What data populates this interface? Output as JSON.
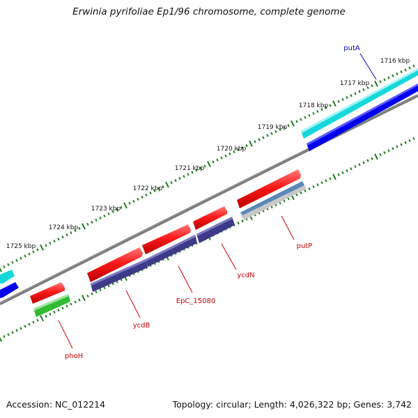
{
  "title": "Erwinia pyrifoliae Ep1/96 chromosome, complete genome",
  "footer": {
    "accession": "Accession: NC_012214",
    "summary": "Topology: circular; Length: 4,026,322 bp; Genes: 3,742"
  },
  "ruler": {
    "labels": [
      "1716 kbp",
      "1717 kbp",
      "1718 kbp",
      "1719 kbp",
      "1720 kbp",
      "1721 kbp",
      "1722 kbp",
      "1723 kbp",
      "1724 kbp",
      "1725 kbp"
    ]
  },
  "genes": [
    {
      "name": "putA",
      "color": "#0000cc"
    },
    {
      "name": "putP",
      "color": "#cc0000"
    },
    {
      "name": "ycdN",
      "color": "#cc0000"
    },
    {
      "name": "EpC_15080",
      "color": "#cc0000"
    },
    {
      "name": "ycdB",
      "color": "#cc0000"
    },
    {
      "name": "phoH",
      "color": "#cc0000"
    }
  ],
  "colors": {
    "cds": "#ff1a1a",
    "gene_forward": "#0000ee",
    "gene_reverse": "#3d3a8a",
    "feature_cyan": "#16d8dc",
    "feature_green": "#33bb33",
    "feature_steel": "#5b86b8",
    "backbone": "#7a7a7a",
    "ticks": "#1a7a1a"
  }
}
